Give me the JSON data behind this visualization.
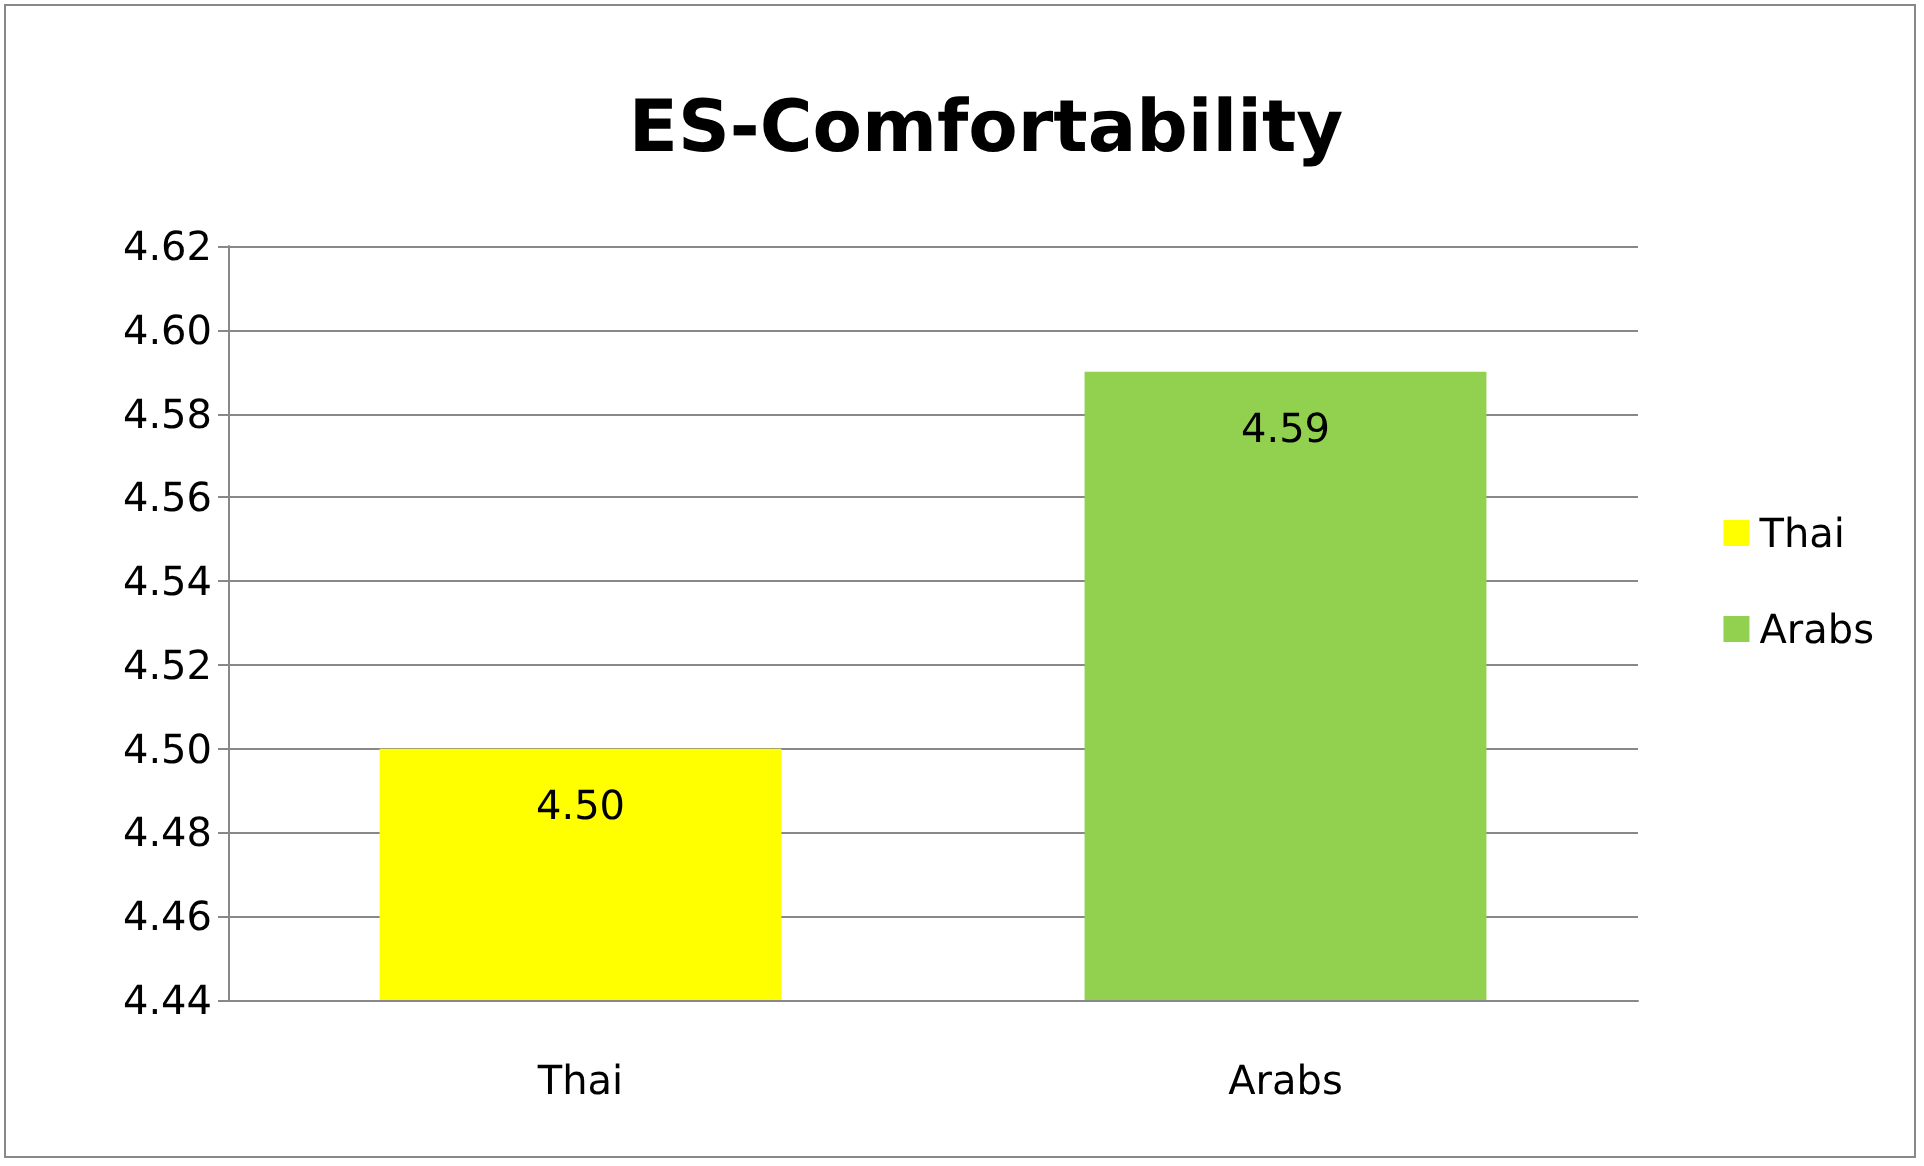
{
  "chart_data": {
    "type": "bar",
    "title": "ES-Comfortability",
    "categories": [
      "Thai",
      "Arabs"
    ],
    "series": [
      {
        "name": "Thai",
        "color": "#ffff00",
        "values": [
          4.5,
          null
        ],
        "value_labels": [
          "4.50",
          null
        ]
      },
      {
        "name": "Arabs",
        "color": "#92d050",
        "values": [
          null,
          4.59
        ],
        "value_labels": [
          null,
          "4.59"
        ]
      }
    ],
    "ylim": [
      4.44,
      4.62
    ],
    "yticks": [
      "4.44",
      "4.46",
      "4.48",
      "4.50",
      "4.52",
      "4.54",
      "4.56",
      "4.58",
      "4.60",
      "4.62"
    ],
    "grid": "y",
    "legend": "right"
  }
}
